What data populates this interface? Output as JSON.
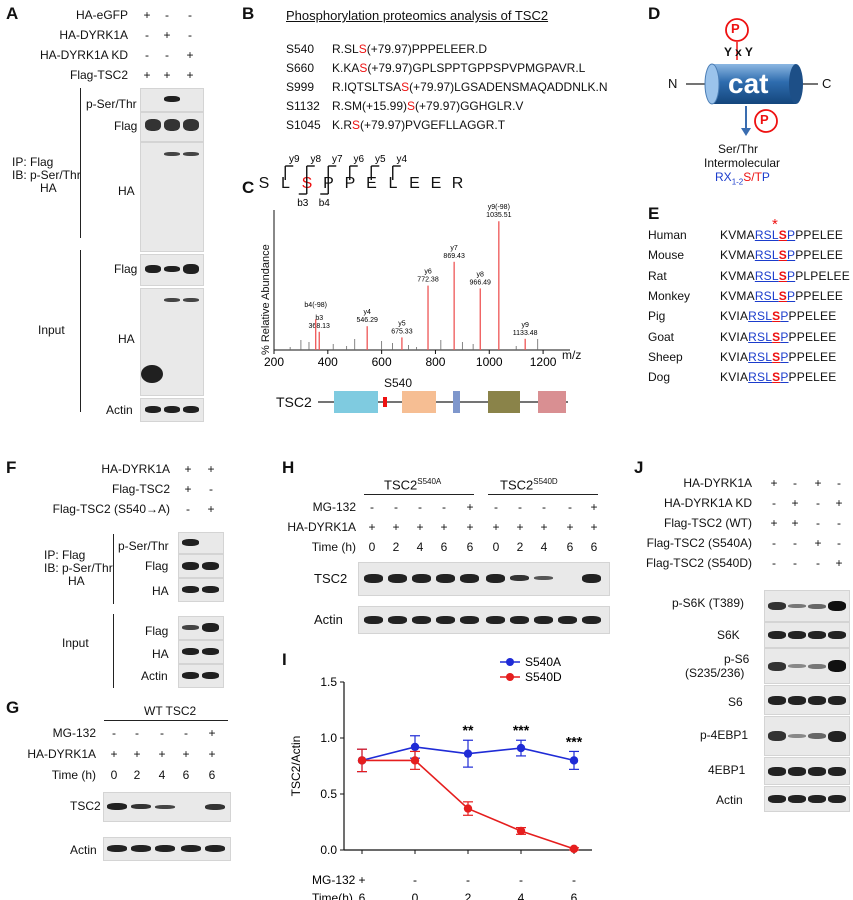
{
  "panelA": {
    "label": "A",
    "rows": [
      {
        "name": "HA-eGFP",
        "signs": [
          "+",
          "-",
          "-"
        ]
      },
      {
        "name": "HA-DYRK1A",
        "signs": [
          "-",
          "+",
          "-"
        ]
      },
      {
        "name": "HA-DYRK1A KD",
        "signs": [
          "-",
          "-",
          "+"
        ]
      },
      {
        "name": "Flag-TSC2",
        "signs": [
          "+",
          "+",
          "+"
        ]
      }
    ],
    "ip_label": "IP: Flag",
    "ib_label": "IB: p-Ser/Thr",
    "ib_ha": "HA",
    "blot_labels": [
      "p-Ser/Thr",
      "Flag",
      "HA",
      "Flag",
      "HA",
      "Actin"
    ],
    "input_label": "Input"
  },
  "panelB": {
    "label": "B",
    "title": "Phosphorylation proteomics analysis of TSC2",
    "sites": [
      {
        "site": "S540",
        "pre": "R.SL",
        "s": "S",
        "post": "(+79.97)PPPELEER.D"
      },
      {
        "site": "S660",
        "pre": "K.KA",
        "s": "S",
        "post": "(+79.97)GPLSPPTGPPSPVPMGPAVR.L"
      },
      {
        "site": "S999",
        "pre": "R.IQTSLTSA",
        "s": "S",
        "post": "(+79.97)LGSADENSMAQADDNLK.N"
      },
      {
        "site": "S1132",
        "pre": "R.SM(+15.99)",
        "s": "S",
        "post": "(+79.97)GGHGLR.V"
      },
      {
        "site": "S1045",
        "pre": "K.R",
        "s": "S",
        "post": "(+79.97)PVGEFLLAGGR.T"
      }
    ]
  },
  "panelC": {
    "label": "C",
    "sequence": [
      "S",
      "L",
      "S",
      "P",
      "P",
      "E",
      "L",
      "E",
      "E",
      "R"
    ],
    "y_ions": [
      "y9",
      "y8",
      "y7",
      "y6",
      "y5",
      "y4"
    ],
    "b_ions": [
      "b3",
      "b4"
    ],
    "ylabel": "% Relative Abundance",
    "xlabel": "m/z",
    "xticks": [
      "200",
      "400",
      "600",
      "800",
      "1000",
      "1200"
    ],
    "peaks": [
      {
        "mz": 368.13,
        "h": 0.13,
        "label": "b3",
        "sub": "368.13"
      },
      {
        "mz": 355,
        "h": 0.22,
        "label": "b4(-98)",
        "sub": ""
      },
      {
        "mz": 546.29,
        "h": 0.17,
        "label": "y4",
        "sub": "546.29"
      },
      {
        "mz": 675.33,
        "h": 0.09,
        "label": "y5",
        "sub": "675.33"
      },
      {
        "mz": 772.38,
        "h": 0.46,
        "label": "y6",
        "sub": "772.38"
      },
      {
        "mz": 869.43,
        "h": 0.63,
        "label": "y7",
        "sub": "869.43"
      },
      {
        "mz": 966.49,
        "h": 0.44,
        "label": "y8",
        "sub": "966.49"
      },
      {
        "mz": 1035.51,
        "h": 0.92,
        "label": "y9(-98)",
        "sub": "1035.51"
      },
      {
        "mz": 1133.48,
        "h": 0.08,
        "label": "y9",
        "sub": "1133.48"
      }
    ],
    "domain_label": "TSC2",
    "site_label": "S540"
  },
  "panelD": {
    "label": "D",
    "cat": "cat",
    "n": "N",
    "c": "C",
    "p": "P",
    "yxy": "Y x Y",
    "line1": "Ser/Thr",
    "line2": "Intermolecular",
    "motif_r": "R",
    "motif_x": "X",
    "motif_sub": "1-2",
    "motif_s": "S/T",
    "motif_p": "P"
  },
  "panelE": {
    "label": "E",
    "star": "*",
    "species": [
      {
        "name": "Human",
        "pre": "KVMA",
        "rsl": "RSL",
        "s": "S",
        "p": "P",
        "post": "PPELEE"
      },
      {
        "name": "Mouse",
        "pre": "KVMA",
        "rsl": "RSL",
        "s": "S",
        "p": "P",
        "post": "PPELEE"
      },
      {
        "name": "Rat",
        "pre": "KVMA",
        "rsl": "RSL",
        "s": "S",
        "p": "P",
        "post": "PLPELEE"
      },
      {
        "name": "Monkey",
        "pre": "KVMA",
        "rsl": "RSL",
        "s": "S",
        "p": "P",
        "post": "PPELEE"
      },
      {
        "name": "Pig",
        "pre": "KVIA",
        "rsl": "RSL",
        "s": "S",
        "p": "P",
        "post": "PPELEE"
      },
      {
        "name": "Goat",
        "pre": "KVIA",
        "rsl": "RSL",
        "s": "S",
        "p": "P",
        "post": "PPELEE"
      },
      {
        "name": "Sheep",
        "pre": "KVIA",
        "rsl": "RSL",
        "s": "S",
        "p": "P",
        "post": "PPELEE"
      },
      {
        "name": "Dog",
        "pre": "KVIA",
        "rsl": "RSL",
        "s": "S",
        "p": "P",
        "post": "PPELEE"
      }
    ]
  },
  "panelF": {
    "label": "F",
    "rows": [
      {
        "name": "HA-DYRK1A",
        "signs": [
          "+",
          "+"
        ]
      },
      {
        "name": "Flag-TSC2",
        "signs": [
          "+",
          "-"
        ]
      },
      {
        "name": "Flag-TSC2 (S540→A)",
        "signs": [
          "-",
          "+"
        ]
      }
    ],
    "ip_label": "IP: Flag",
    "ib_label": "IB: p-Ser/Thr",
    "ib_ha": "HA",
    "blot_labels": [
      "p-Ser/Thr",
      "Flag",
      "HA",
      "Flag",
      "HA",
      "Actin"
    ],
    "input_label": "Input"
  },
  "panelG": {
    "label": "G",
    "header": "WT TSC2",
    "rows": [
      {
        "name": "MG-132",
        "signs": [
          "-",
          "-",
          "-",
          "-",
          "+"
        ]
      },
      {
        "name": "HA-DYRK1A",
        "signs": [
          "+",
          "+",
          "+",
          "+",
          "+"
        ]
      },
      {
        "name": "Time (h)",
        "signs": [
          "0",
          "2",
          "4",
          "6",
          "6"
        ]
      }
    ],
    "blot_labels": [
      "TSC2",
      "Actin"
    ]
  },
  "panelH": {
    "label": "H",
    "group1": "TSC2",
    "group1_sup": "S540A",
    "group2": "TSC2",
    "group2_sup": "S540D",
    "rows": [
      {
        "name": "MG-132",
        "signs": [
          "-",
          "-",
          "-",
          "-",
          "+",
          "-",
          "-",
          "-",
          "-",
          "+"
        ]
      },
      {
        "name": "HA-DYRK1A",
        "signs": [
          "+",
          "+",
          "+",
          "+",
          "+",
          "+",
          "+",
          "+",
          "+",
          "+"
        ]
      },
      {
        "name": "Time (h)",
        "signs": [
          "0",
          "2",
          "4",
          "6",
          "6",
          "0",
          "2",
          "4",
          "6",
          "6"
        ]
      }
    ],
    "blot_labels": [
      "TSC2",
      "Actin"
    ]
  },
  "panelI": {
    "label": "I",
    "ylabel": "TSC2/Actin",
    "yticks": [
      "0.0",
      "0.5",
      "1.0",
      "1.5"
    ],
    "mg132_label": "MG-132",
    "time_label": "Time(h)",
    "mg132": [
      "+",
      "-",
      "-",
      "-",
      "-"
    ],
    "time": [
      "6",
      "0",
      "2",
      "4",
      "6"
    ],
    "sig": [
      "",
      "",
      "**",
      "***",
      "***"
    ],
    "chart_data": {
      "type": "line",
      "ylabel": "TSC2/Actin",
      "ylim": [
        0,
        1.5
      ],
      "series": [
        {
          "name": "S540A",
          "color": "#1f2bd6",
          "values": [
            0.8,
            0.92,
            0.86,
            0.91,
            0.8
          ],
          "err": [
            0.1,
            0.1,
            0.12,
            0.07,
            0.08
          ]
        },
        {
          "name": "S540D",
          "color": "#e51e1e",
          "values": [
            0.8,
            0.8,
            0.37,
            0.17,
            0.01
          ],
          "err": [
            0.1,
            0.08,
            0.06,
            0.03,
            0.01
          ]
        }
      ]
    }
  },
  "panelJ": {
    "label": "J",
    "rows": [
      {
        "name": "HA-DYRK1A",
        "signs": [
          "+",
          "-",
          "+",
          "-"
        ]
      },
      {
        "name": "HA-DYRK1A KD",
        "signs": [
          "-",
          "+",
          "-",
          "+"
        ]
      },
      {
        "name": "Flag-TSC2 (WT)",
        "signs": [
          "+",
          "+",
          "-",
          "-"
        ]
      },
      {
        "name": "Flag-TSC2 (S540A)",
        "signs": [
          "-",
          "-",
          "+",
          "-"
        ]
      },
      {
        "name": "Flag-TSC2 (S540D)",
        "signs": [
          "-",
          "-",
          "-",
          "+"
        ]
      }
    ],
    "blot_labels": [
      "p-S6K (T389)",
      "S6K",
      "p-S6",
      "(S235/236)",
      "S6",
      "p-4EBP1",
      "4EBP1",
      "Actin"
    ]
  }
}
